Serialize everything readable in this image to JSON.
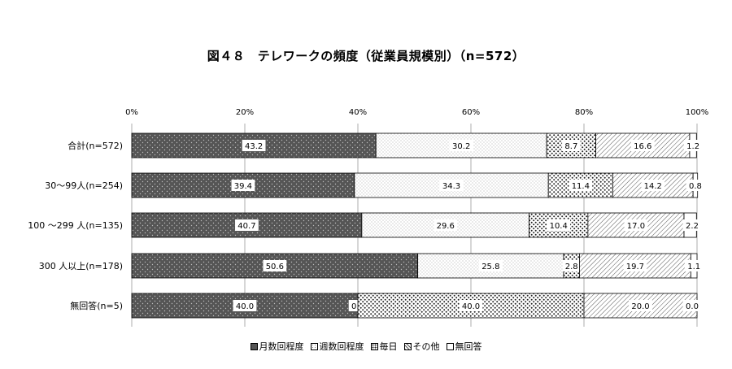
{
  "chart_data": {
    "type": "bar",
    "orientation": "horizontal",
    "stacked": "100%",
    "title": "図４８　テレワークの頻度（従業員規模別）（n=572）",
    "x_ticks": [
      "0%",
      "20%",
      "40%",
      "60%",
      "80%",
      "100%"
    ],
    "xlim": [
      0,
      100
    ],
    "categories": [
      "合計(n=572)",
      "30～99人(n=254)",
      "100 ～299 人(n=135)",
      "300 人以上(n=178)",
      "無回答(n=5)"
    ],
    "series": [
      {
        "name": "月数回程度",
        "values": [
          43.2,
          39.4,
          40.7,
          50.6,
          40.0
        ],
        "labels": [
          "43.2",
          "39.4",
          "40.7",
          "50.6",
          "40.0"
        ],
        "color": "#555555",
        "pattern": "dark-dots"
      },
      {
        "name": "週数回程度",
        "values": [
          30.2,
          34.3,
          29.6,
          25.8,
          0.0
        ],
        "labels": [
          "30.2",
          "34.3",
          "29.6",
          "25.8",
          "0.0"
        ],
        "color": "#f4f4f4",
        "pattern": "fine-dots"
      },
      {
        "name": "毎日",
        "values": [
          8.7,
          11.4,
          10.4,
          2.8,
          40.0
        ],
        "labels": [
          "8.7",
          "11.4",
          "10.4",
          "2.8",
          "40.0"
        ],
        "color": "#e6e6e6",
        "pattern": "coarse-dots"
      },
      {
        "name": "その他",
        "values": [
          16.6,
          14.2,
          17.0,
          19.7,
          20.0
        ],
        "labels": [
          "16.6",
          "14.2",
          "17.0",
          "19.7",
          "20.0"
        ],
        "color": "#ffffff",
        "pattern": "diagonal"
      },
      {
        "name": "無回答",
        "values": [
          1.2,
          0.8,
          2.2,
          1.1,
          0.0
        ],
        "labels": [
          "1.2",
          "0.8",
          "2.2",
          "1.1",
          "0.0"
        ],
        "color": "#ffffff",
        "pattern": "plain"
      }
    ],
    "legend": {
      "placement": "bottom"
    },
    "grid": true
  }
}
